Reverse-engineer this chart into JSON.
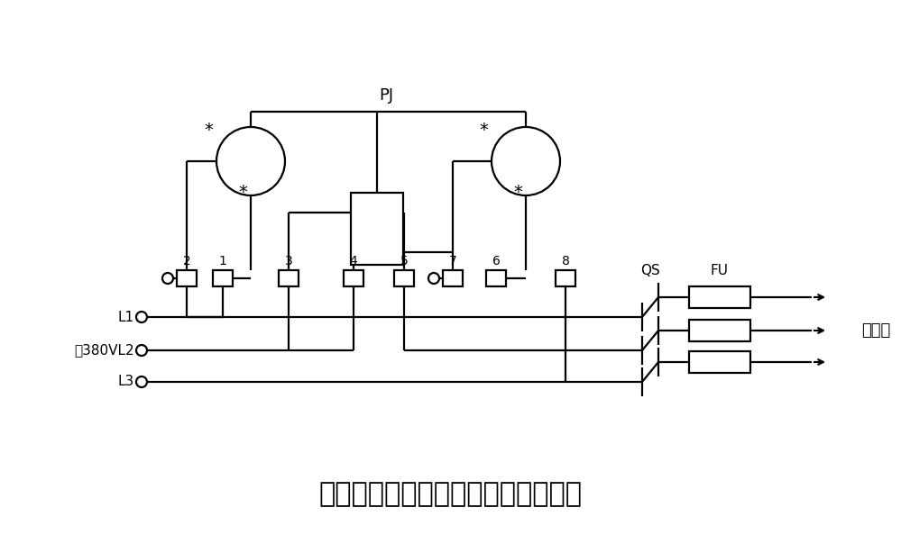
{
  "title": "三相三线有功电能表直人式接线电路",
  "title_fontsize": 22,
  "bg_color": "#ffffff",
  "line_color": "#000000",
  "line_width": 1.6,
  "pj_label": "PJ",
  "qs_label": "QS",
  "fu_label": "FU",
  "load_label": "接负载",
  "L1_label": "L1",
  "L2_label": "～380VL2",
  "L3_label": "L3"
}
